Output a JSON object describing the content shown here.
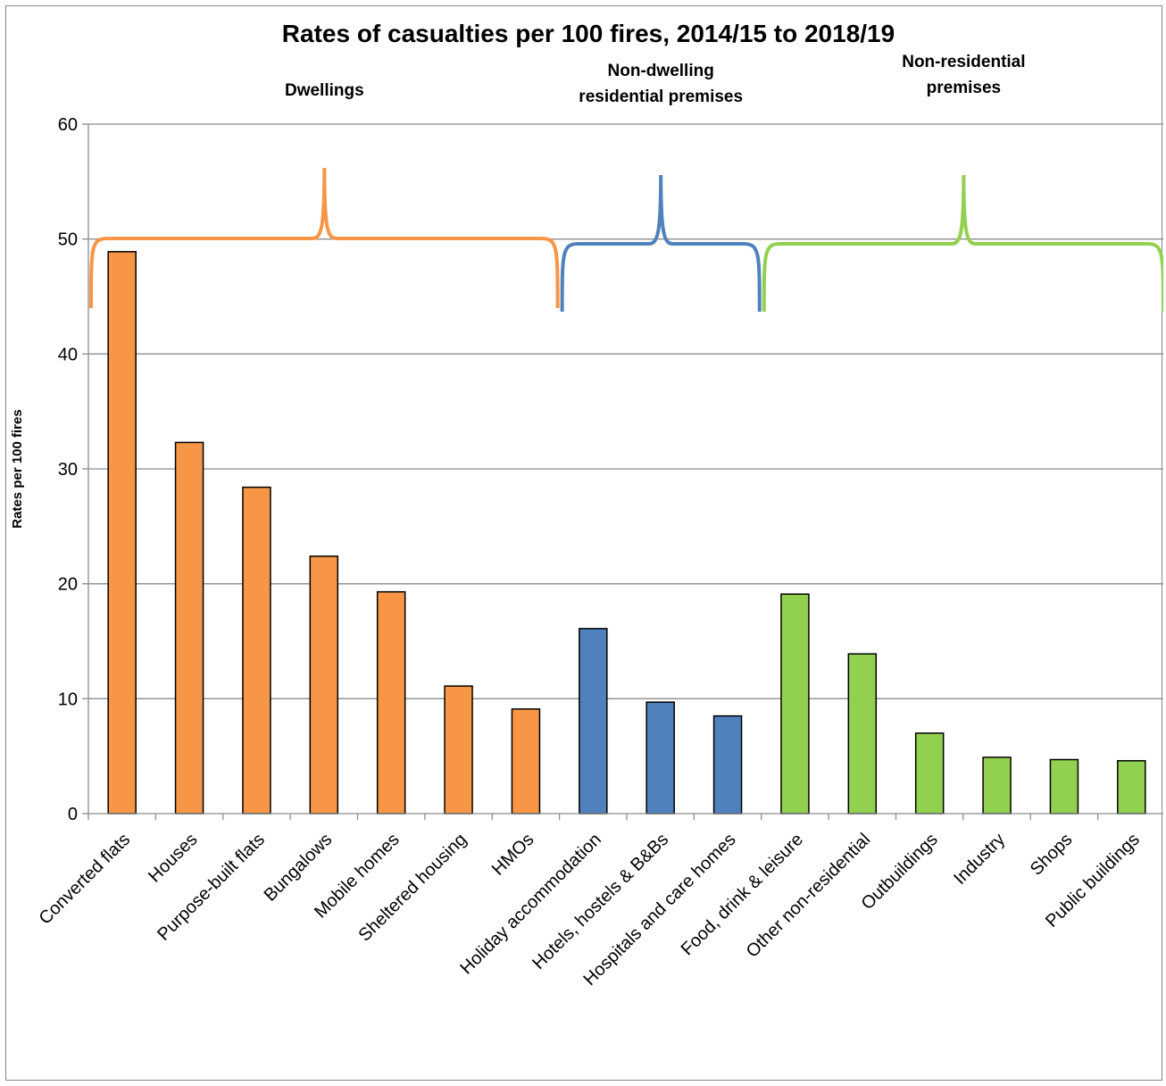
{
  "chart_data": {
    "type": "bar",
    "title": "Rates of casualties per 100 fires, 2014/15 to 2018/19",
    "ylabel": "Rates per 100 fires",
    "xlabel": "",
    "ylim": [
      0,
      60
    ],
    "yticks": [
      0,
      10,
      20,
      30,
      40,
      50,
      60
    ],
    "grid": true,
    "categories": [
      "Converted flats",
      "Houses",
      "Purpose-built flats",
      "Bungalows",
      "Mobile homes",
      "Sheltered housing",
      "HMOs",
      "Holiday accommodation",
      "Hotels, hostels & B&Bs",
      "Hospitals and care homes",
      "Food, drink & leisure",
      "Other non-residential",
      "Outbuildings",
      "Industry",
      "Shops",
      "Public buildings"
    ],
    "values": [
      48.9,
      32.3,
      28.4,
      22.4,
      19.3,
      11.1,
      9.1,
      16.1,
      9.7,
      8.5,
      19.1,
      13.9,
      7.0,
      4.9,
      4.7,
      4.6
    ],
    "groups": [
      {
        "label_lines": [
          "Dwellings"
        ],
        "start": 0,
        "end": 6,
        "color": "#f79646"
      },
      {
        "label_lines": [
          "Non-dwelling",
          "residential premises"
        ],
        "start": 7,
        "end": 9,
        "color": "#4f81bd"
      },
      {
        "label_lines": [
          "Non-residential",
          "premises"
        ],
        "start": 10,
        "end": 15,
        "color": "#92d050"
      }
    ]
  }
}
